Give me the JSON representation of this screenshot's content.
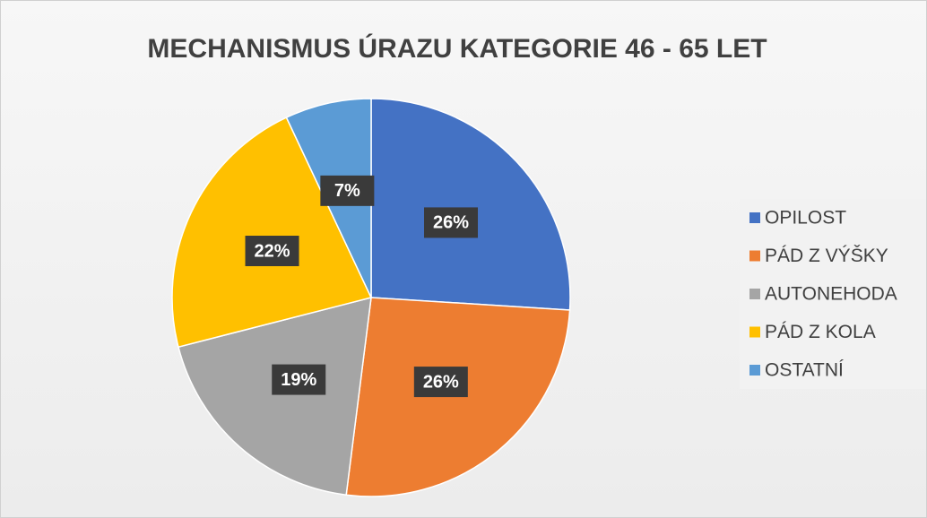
{
  "chart_data": {
    "type": "pie",
    "title": "MECHANISMUS ÚRAZU KATEGORIE 46 - 65 LET",
    "categories": [
      "OPILOST",
      "PÁD Z VÝŠKY",
      "AUTONEHODA",
      "PÁD Z KOLA",
      "OSTATNÍ"
    ],
    "values": [
      26,
      26,
      19,
      22,
      7
    ],
    "value_labels": [
      "26%",
      "26%",
      "19%",
      "22%",
      "7%"
    ],
    "colors": [
      "#4472c4",
      "#ed7d31",
      "#a5a5a5",
      "#ffc000",
      "#5b9bd5"
    ],
    "legend": "right"
  }
}
